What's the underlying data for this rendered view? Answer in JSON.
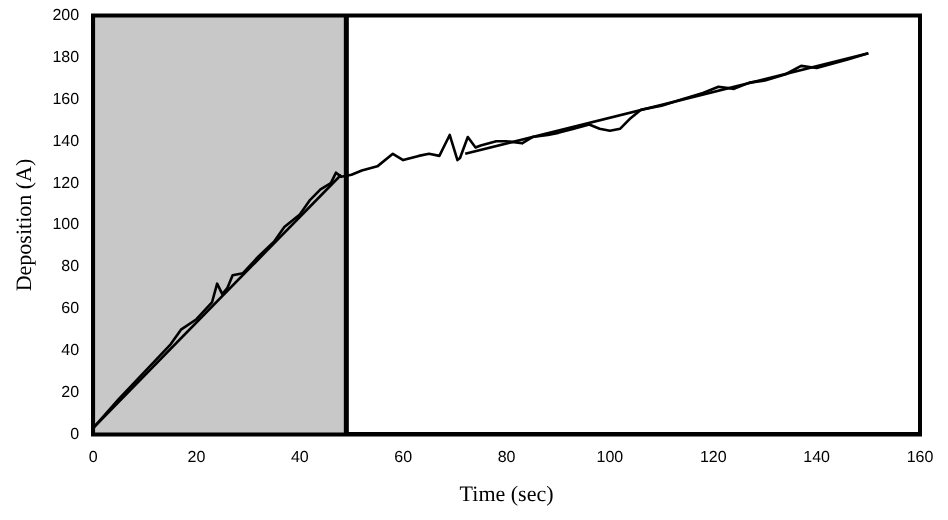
{
  "chart_data": {
    "type": "line",
    "xlabel": "Time (sec)",
    "ylabel": "Deposition (A)",
    "xlim": [
      0,
      160
    ],
    "xticks": [
      0,
      20,
      40,
      60,
      80,
      100,
      120,
      140,
      160
    ],
    "ylim": [
      0,
      200
    ],
    "yticks": [
      0,
      20,
      40,
      60,
      80,
      100,
      120,
      140,
      160,
      180,
      200
    ],
    "grid": false,
    "legend": false,
    "marker": "none",
    "line_style": "solid",
    "bands": [
      {
        "axis": "x",
        "from": 0,
        "to": 49,
        "color": "#c8c8c8"
      }
    ],
    "ref_lines": [
      {
        "axis": "x",
        "value": 49,
        "color": "#000000"
      }
    ],
    "series": [
      {
        "color": "#000000",
        "x": [
          0,
          5,
          10,
          15,
          17,
          20,
          23,
          24,
          25,
          26,
          27,
          29,
          32,
          35,
          37,
          40,
          42,
          44,
          46,
          47,
          48,
          50,
          52,
          55,
          58,
          60,
          63,
          65,
          67,
          69,
          70.5,
          71,
          72.5,
          74,
          75,
          78,
          80,
          83,
          85,
          88,
          90,
          93,
          96,
          98,
          100,
          102,
          104,
          106,
          110,
          114,
          118,
          121,
          124,
          127,
          130,
          134,
          137,
          140,
          143,
          146,
          150
        ],
        "values": [
          3,
          17,
          30,
          43,
          50,
          55,
          63,
          72,
          67,
          70,
          76,
          77,
          85,
          92,
          99,
          105,
          112,
          117,
          120,
          125,
          123,
          124,
          126,
          128,
          134,
          131,
          133,
          134,
          133,
          143,
          131,
          132,
          142,
          137,
          138,
          140,
          140,
          139,
          142,
          143,
          144,
          146,
          148,
          146,
          145,
          146,
          151,
          155,
          157,
          160,
          163,
          166,
          165,
          168,
          169,
          172,
          176,
          175,
          177,
          179,
          182
        ]
      },
      {
        "color": "#000000",
        "x": [
          0,
          48
        ],
        "values": [
          3,
          124
        ]
      },
      {
        "color": "#000000",
        "x": [
          72,
          150
        ],
        "values": [
          134,
          182
        ]
      }
    ]
  }
}
